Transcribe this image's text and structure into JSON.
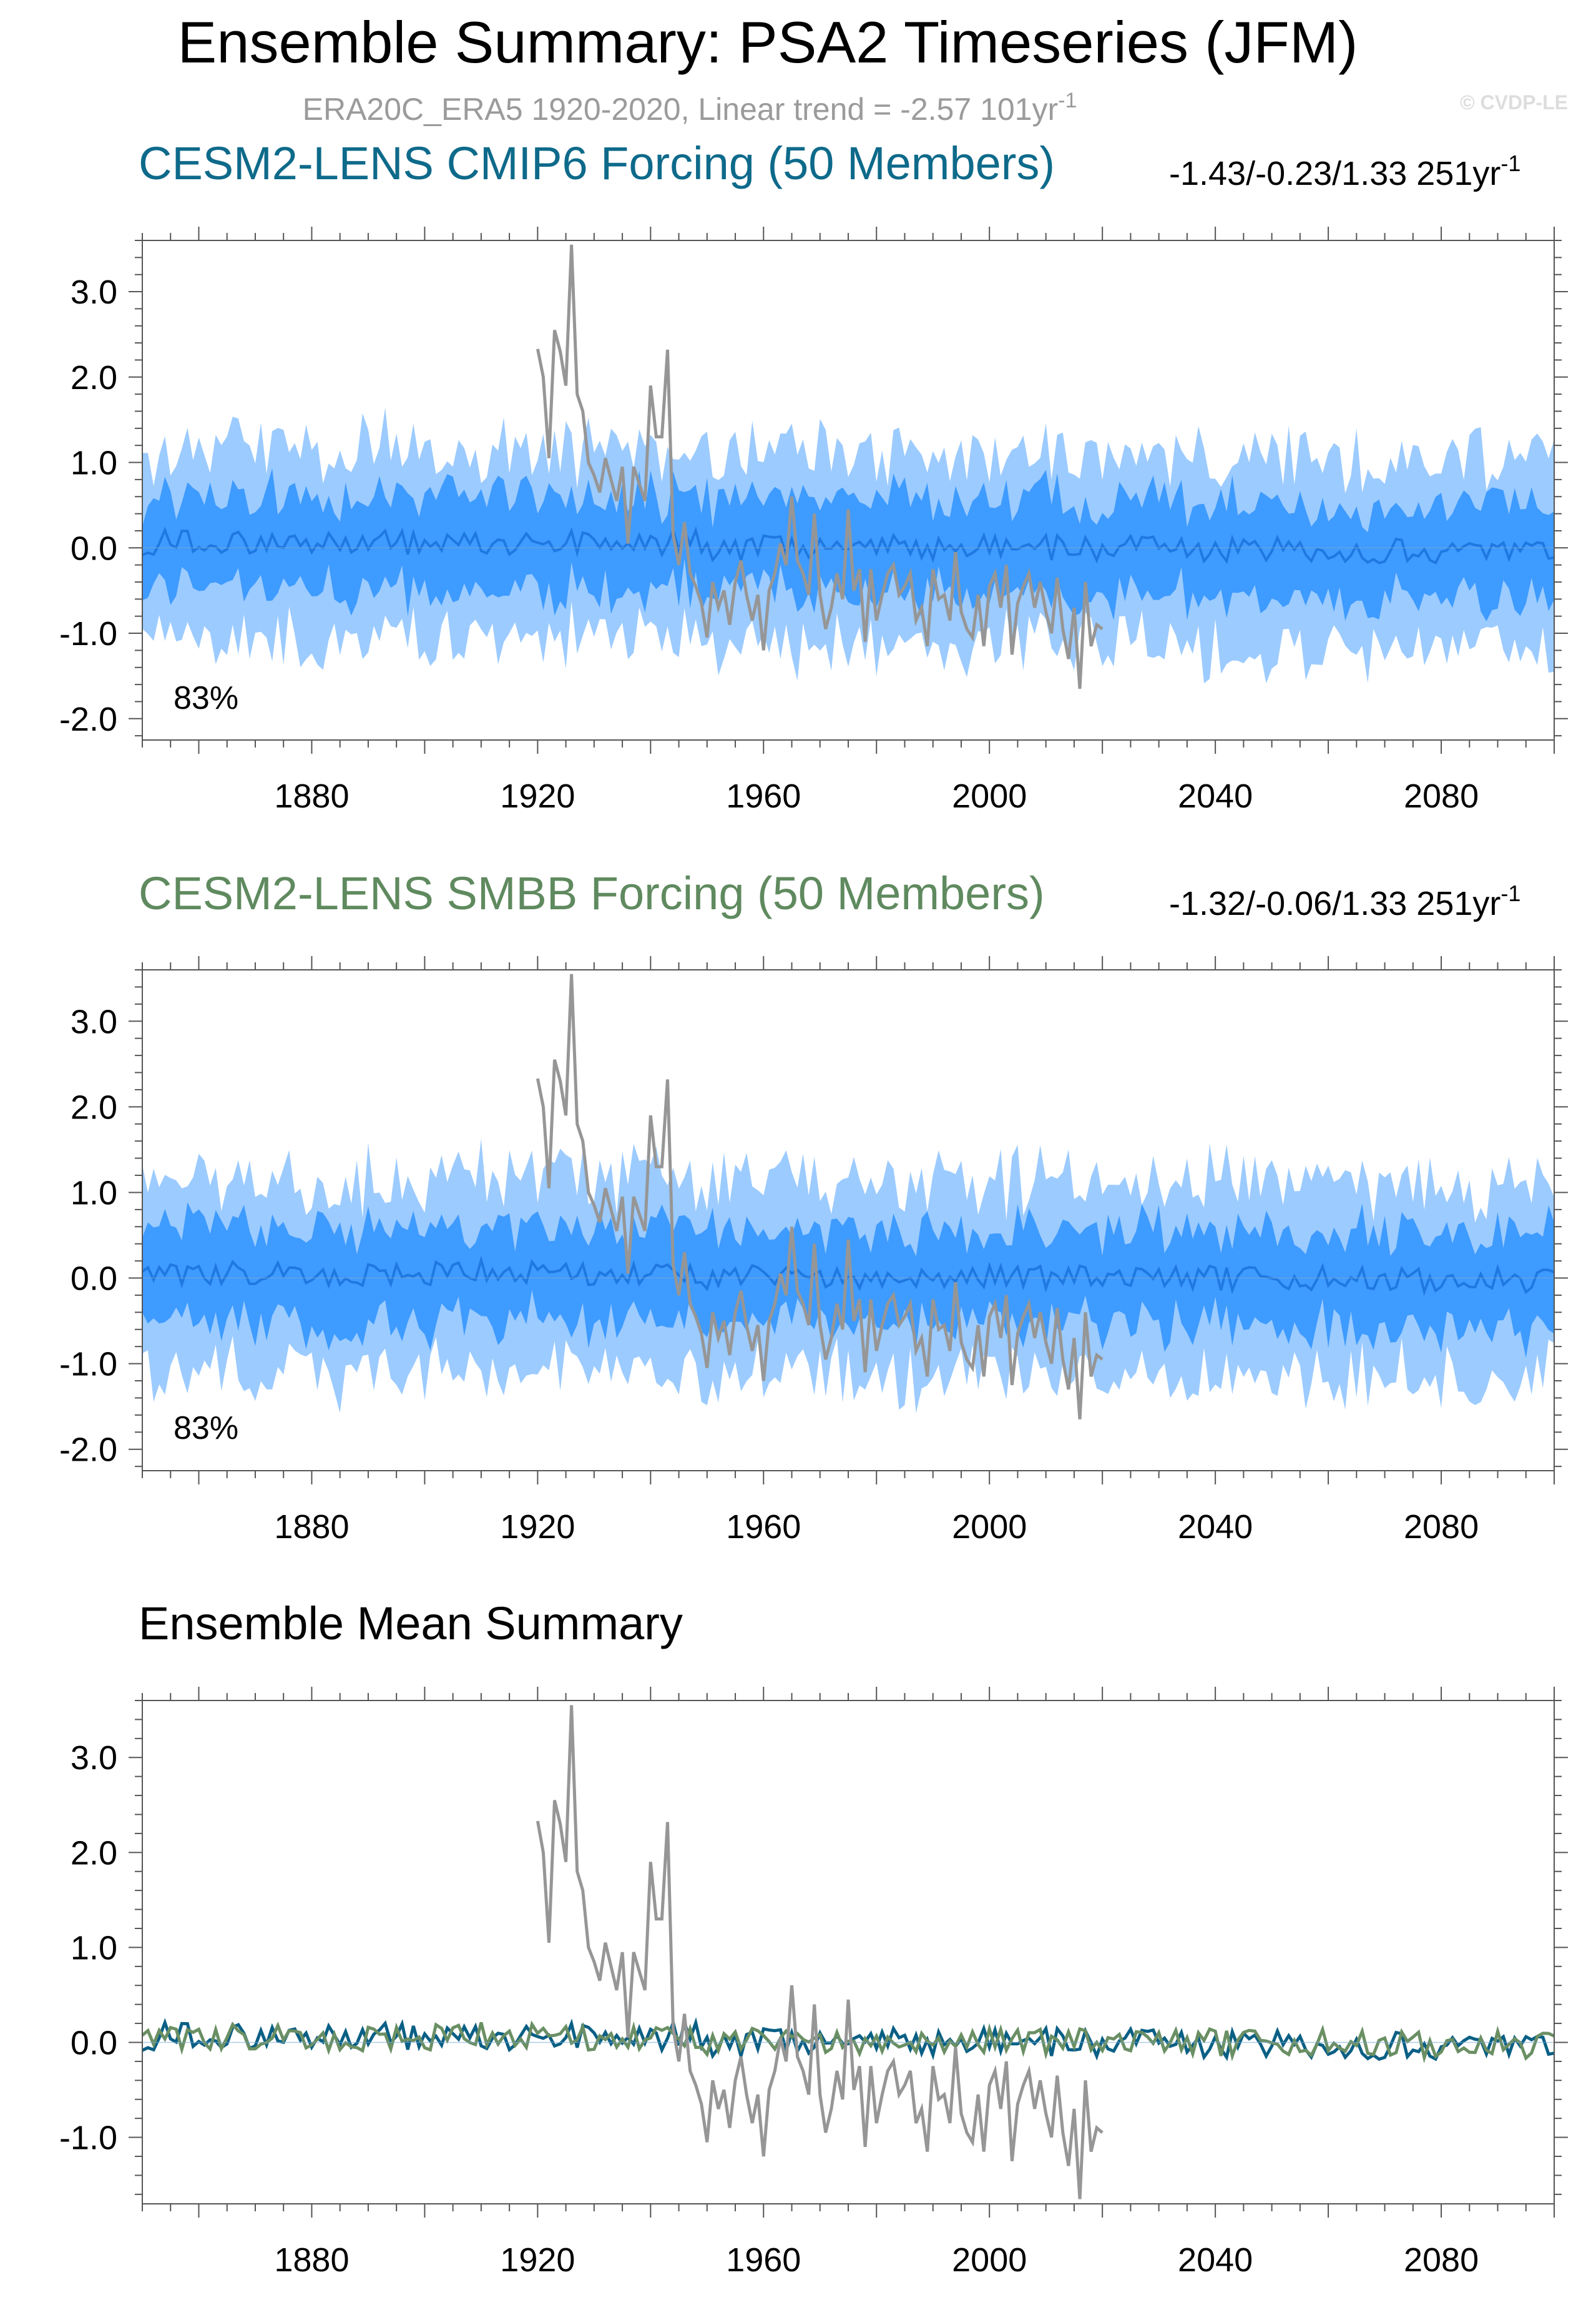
{
  "header": {
    "title": "Ensemble Summary: PSA2 Timeseries (JFM)",
    "obs_line": "ERA20C_ERA5 1920-2020, Linear trend = -2.57 101yr",
    "obs_line_sup": "-1",
    "watermark": "© CVDP-LE"
  },
  "colors": {
    "cmip6_title": "#0e6a8a",
    "smbb_title": "#5f8a5f",
    "band_outer": "#9ccbff",
    "band_inner": "#3e9bff",
    "mean_line": "#1f78e0",
    "obs_line": "#969696",
    "cmip6_mean": "#0a5f84",
    "smbb_mean": "#6a8f64"
  },
  "chart_data": [
    {
      "type": "area",
      "title": "CESM2-LENS CMIP6 Forcing (50 Members)",
      "trend_text": "-1.43/-0.23/1.33 251yr",
      "trend_sup": "-1",
      "inset_label": "83%",
      "xlim": [
        1850,
        2100
      ],
      "ylim": [
        -2.25,
        3.6
      ],
      "x_ticks": [
        "1880",
        "1920",
        "1960",
        "2000",
        "2040",
        "2080"
      ],
      "y_ticks": [
        "3.0",
        "2.0",
        "1.0",
        "0.0",
        "-1.0",
        "-2.0"
      ],
      "series": [
        {
          "name": "",
          "kind": "ensemble-mean",
          "values_ref": "generated"
        },
        {
          "name": "",
          "kind": "observations",
          "values_ref": "obs"
        }
      ],
      "grid": false
    },
    {
      "type": "area",
      "title": "CESM2-LENS SMBB Forcing (50 Members)",
      "trend_text": "-1.32/-0.06/1.33 251yr",
      "trend_sup": "-1",
      "inset_label": "83%",
      "xlim": [
        1850,
        2100
      ],
      "ylim": [
        -2.25,
        3.6
      ],
      "x_ticks": [
        "1880",
        "1920",
        "1960",
        "2000",
        "2040",
        "2080"
      ],
      "y_ticks": [
        "3.0",
        "2.0",
        "1.0",
        "0.0",
        "-1.0",
        "-2.0"
      ],
      "grid": false
    },
    {
      "type": "line",
      "title": "Ensemble Mean Summary",
      "xlim": [
        1850,
        2100
      ],
      "ylim": [
        -1.7,
        3.6
      ],
      "x_ticks": [
        "1880",
        "1920",
        "1960",
        "2000",
        "2040",
        "2080"
      ],
      "y_ticks": [
        "3.0",
        "2.0",
        "1.0",
        "0.0",
        "-1.0"
      ],
      "grid": false
    }
  ],
  "obs": {
    "years_start": 1920,
    "values": [
      2.33,
      2.0,
      1.05,
      2.55,
      2.3,
      1.9,
      3.55,
      1.8,
      1.6,
      1.0,
      0.85,
      0.65,
      1.05,
      0.8,
      0.55,
      0.95,
      0.05,
      0.95,
      0.75,
      0.55,
      1.9,
      1.3,
      1.3,
      2.32,
      0.15,
      -0.2,
      0.3,
      -0.3,
      -0.45,
      -0.65,
      -1.05,
      -0.4,
      -0.7,
      -0.5,
      -0.9,
      -0.4,
      -0.15,
      -0.55,
      -0.85,
      -0.55,
      -1.2,
      -0.5,
      -0.3,
      0.05,
      -0.2,
      0.6,
      -0.15,
      -0.3,
      -0.55,
      0.4,
      -0.55,
      -0.95,
      -0.7,
      -0.3,
      -0.6,
      0.45,
      -0.5,
      -0.25,
      -1.1,
      -0.25,
      -0.85,
      -0.55,
      -0.3,
      -0.2,
      -0.55,
      -0.45,
      -0.3,
      -0.85,
      -0.7,
      -1.15,
      -0.25,
      -0.6,
      -0.55,
      -0.85,
      -0.05,
      -0.75,
      -0.95,
      -1.05,
      -0.55,
      -1.15,
      -0.45,
      -0.3,
      -0.7,
      -0.2,
      -1.25,
      -0.65,
      -0.45,
      -0.3,
      -0.7,
      -0.4,
      -0.75,
      -1.0,
      -0.35,
      -0.95,
      -1.3,
      -0.7,
      -1.65,
      -0.4,
      -1.15,
      -0.9,
      -0.95
    ]
  }
}
